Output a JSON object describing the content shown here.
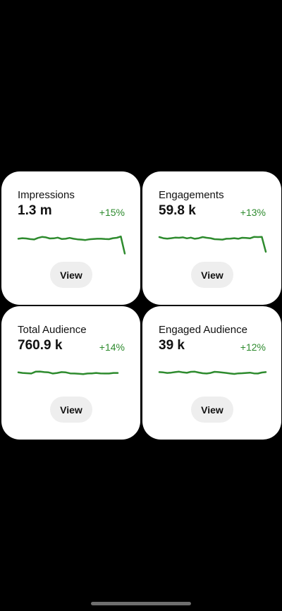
{
  "accent_color": "#2e8b2e",
  "cards": [
    {
      "label": "Impressions",
      "value": "1.3 m",
      "change": "+15%",
      "button_label": "View",
      "trend": [
        0.62,
        0.55,
        0.58,
        0.66,
        0.7,
        0.52,
        0.4,
        0.45,
        0.58,
        0.57,
        0.48,
        0.64,
        0.62,
        0.52,
        0.62,
        0.68,
        0.72,
        0.77,
        0.68,
        0.65,
        0.62,
        0.62,
        0.65,
        0.67,
        0.55,
        0.5,
        0.35,
        1.35
      ]
    },
    {
      "label": "Engagements",
      "value": "59.8 k",
      "change": "+13%",
      "button_label": "View",
      "trend": [
        0.42,
        0.55,
        0.6,
        0.55,
        0.48,
        0.5,
        0.45,
        0.57,
        0.48,
        0.62,
        0.55,
        0.42,
        0.5,
        0.55,
        0.67,
        0.68,
        0.72,
        0.62,
        0.6,
        0.55,
        0.62,
        0.5,
        0.52,
        0.57,
        0.4,
        0.42,
        0.4,
        1.25
      ]
    },
    {
      "label": "Total Audience",
      "value": "760.9 k",
      "change": "+14%",
      "button_label": "View",
      "trend": [
        0.48,
        0.55,
        0.58,
        0.62,
        0.4,
        0.38,
        0.45,
        0.48,
        0.62,
        0.55,
        0.45,
        0.48,
        0.6,
        0.62,
        0.65,
        0.68,
        0.62,
        0.6,
        0.55,
        0.6,
        0.62,
        0.62,
        0.55,
        0.55
      ]
    },
    {
      "label": "Engaged Audience",
      "value": "39 k",
      "change": "+12%",
      "button_label": "View",
      "trend": [
        0.45,
        0.48,
        0.55,
        0.52,
        0.45,
        0.4,
        0.48,
        0.53,
        0.42,
        0.4,
        0.5,
        0.58,
        0.62,
        0.55,
        0.42,
        0.45,
        0.5,
        0.55,
        0.62,
        0.67,
        0.6,
        0.58,
        0.55,
        0.52,
        0.6,
        0.62,
        0.5,
        0.45
      ]
    }
  ]
}
